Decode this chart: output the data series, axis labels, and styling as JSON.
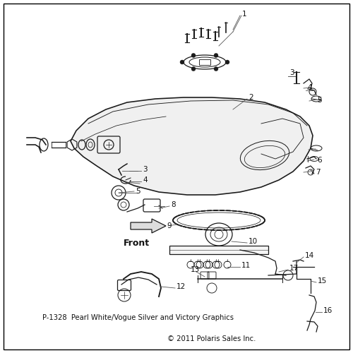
{
  "background_color": "#ffffff",
  "border_color": "#000000",
  "fig_width": 5.0,
  "fig_height": 5.0,
  "dpi": 100,
  "footnote": "P-1328  Pearl White/Vogue Silver and Victory Graphics",
  "copyright": "© 2011 Polaris Sales Inc.",
  "front_text": "Front",
  "line_color": "#1a1a1a",
  "label_color": "#111111",
  "label_fontsize": 7.5,
  "tank_color": "#e8e8e8",
  "tank_stroke": "#2a2a2a"
}
